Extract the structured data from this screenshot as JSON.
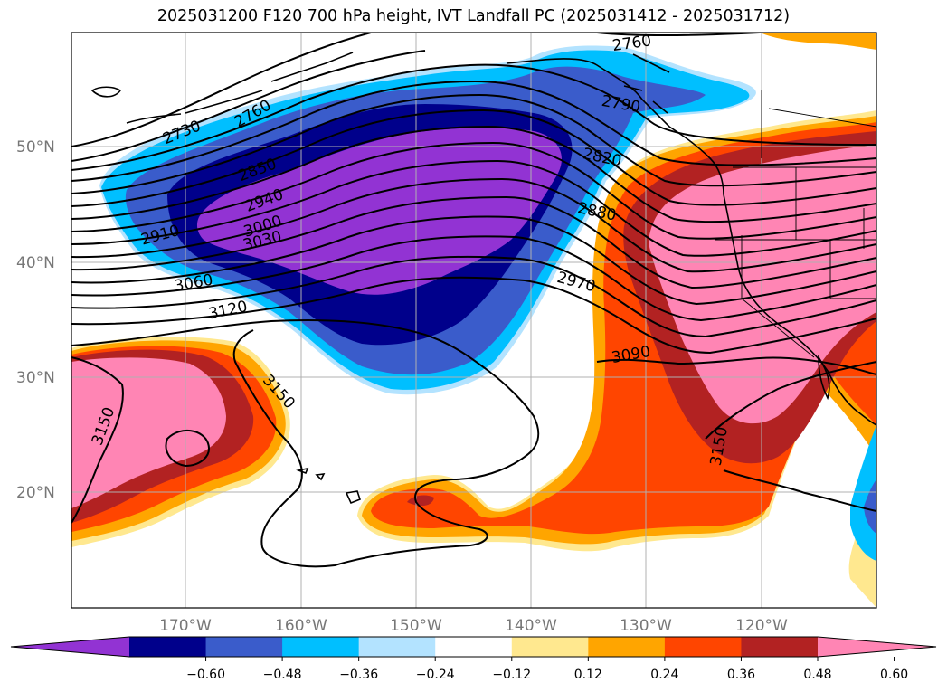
{
  "title": "2025031200 F120 700 hPa height, IVT Landfall PC (2025031412 - 2025031712)",
  "latitude_labels": [
    "50°N",
    "40°N",
    "30°N",
    "20°N"
  ],
  "longitude_labels": [
    "170°W",
    "160°W",
    "150°W",
    "140°W",
    "130°W",
    "120°W"
  ],
  "contour_labels": [
    "2760",
    "2730",
    "2760",
    "2790",
    "2820",
    "2850",
    "2940",
    "2910",
    "3000",
    "3030",
    "3060",
    "3120",
    "2880",
    "2970",
    "3090",
    "3150",
    "3150",
    "3150"
  ],
  "colorbar": {
    "colors": [
      "#9233d3",
      "#00008b",
      "#3a5ccb",
      "#00bfff",
      "#b3e3ff",
      "#ffffff",
      "#ffe88f",
      "#ffa500",
      "#ff4500",
      "#b22222",
      "#ff85b4"
    ],
    "tick_labels": [
      "−0.60",
      "−0.48",
      "−0.36",
      "−0.24",
      "−0.12",
      "0.12",
      "0.24",
      "0.36",
      "0.48",
      "0.60"
    ]
  },
  "colors": {
    "ivt_negative": "#9233d3",
    "ivt_positive": "#ff85b4",
    "gridline": "#b0b0b0"
  }
}
